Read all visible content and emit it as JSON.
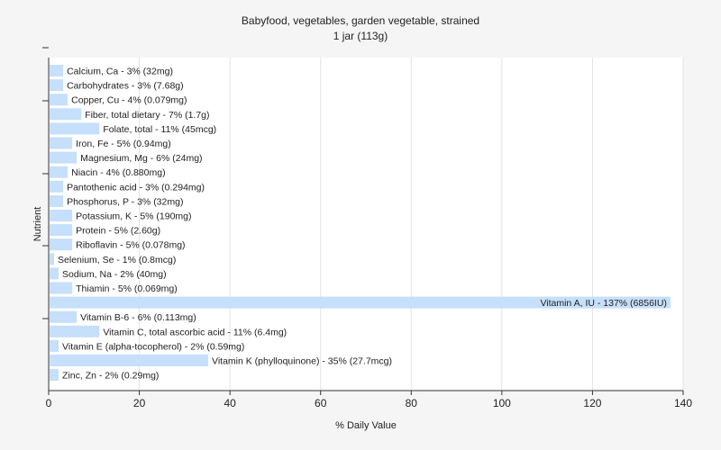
{
  "chart_data": {
    "type": "bar",
    "orientation": "horizontal",
    "title": "Babyfood, vegetables, garden vegetable, strained",
    "subtitle": "1 jar (113g)",
    "xlabel": "% Daily Value",
    "ylabel": "Nutrient",
    "xlim": [
      0,
      140
    ],
    "xticks": [
      0,
      20,
      40,
      60,
      80,
      100,
      120,
      140
    ],
    "grid": true,
    "bar_color": "#c6dffa",
    "categories": [
      "Calcium, Ca",
      "Carbohydrates",
      "Copper, Cu",
      "Fiber, total dietary",
      "Folate, total",
      "Iron, Fe",
      "Magnesium, Mg",
      "Niacin",
      "Pantothenic acid",
      "Phosphorus, P",
      "Potassium, K",
      "Protein",
      "Riboflavin",
      "Selenium, Se",
      "Sodium, Na",
      "Thiamin",
      "Vitamin A, IU",
      "Vitamin B-6",
      "Vitamin C, total ascorbic acid",
      "Vitamin E (alpha-tocopherol)",
      "Vitamin K (phylloquinone)",
      "Zinc, Zn"
    ],
    "values": [
      3,
      3,
      4,
      7,
      11,
      5,
      6,
      4,
      3,
      3,
      5,
      5,
      5,
      1,
      2,
      5,
      137,
      6,
      11,
      2,
      35,
      2
    ],
    "labels": [
      "Calcium, Ca - 3% (32mg)",
      "Carbohydrates - 3% (7.68g)",
      "Copper, Cu - 4% (0.079mg)",
      "Fiber, total dietary - 7% (1.7g)",
      "Folate, total - 11% (45mcg)",
      "Iron, Fe - 5% (0.94mg)",
      "Magnesium, Mg - 6% (24mg)",
      "Niacin - 4% (0.880mg)",
      "Pantothenic acid - 3% (0.294mg)",
      "Phosphorus, P - 3% (32mg)",
      "Potassium, K - 5% (190mg)",
      "Protein - 5% (2.60g)",
      "Riboflavin - 5% (0.078mg)",
      "Selenium, Se - 1% (0.8mcg)",
      "Sodium, Na - 2% (40mg)",
      "Thiamin - 5% (0.069mg)",
      "Vitamin A, IU - 137% (6856IU)",
      "Vitamin B-6 - 6% (0.113mg)",
      "Vitamin C, total ascorbic acid - 11% (6.4mg)",
      "Vitamin E (alpha-tocopherol) - 2% (0.59mg)",
      "Vitamin K (phylloquinone) - 35% (27.7mcg)",
      "Zinc, Zn - 2% (0.29mg)"
    ]
  }
}
